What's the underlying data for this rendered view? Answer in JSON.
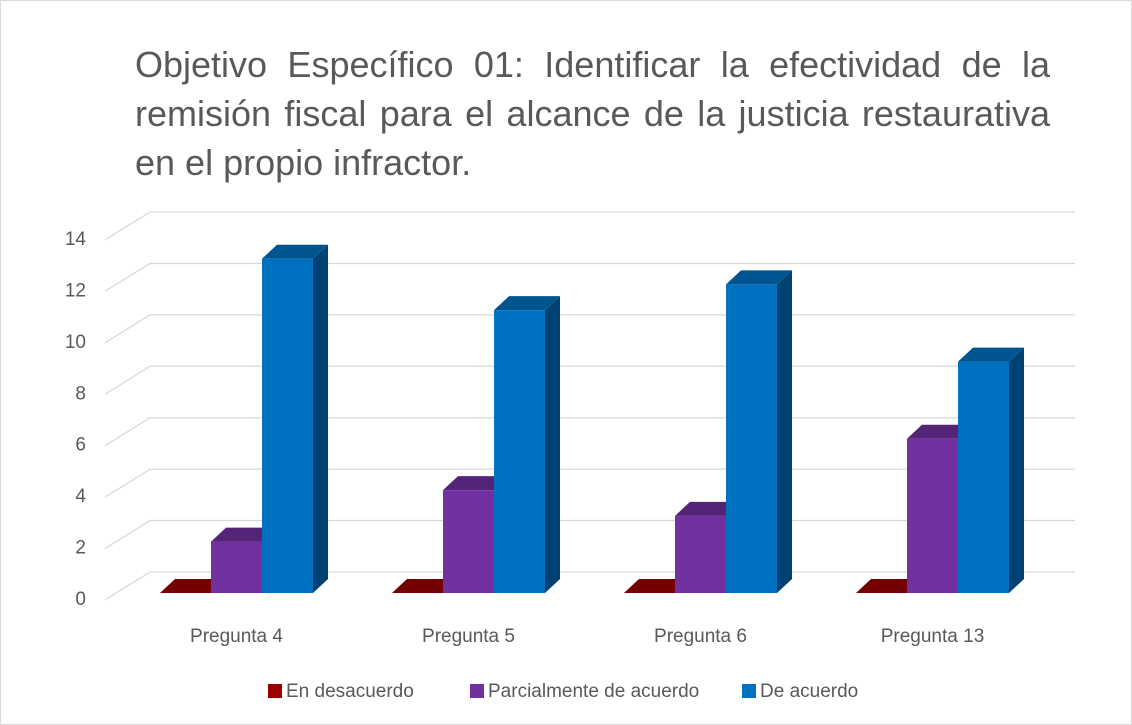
{
  "chart_data": {
    "type": "bar3d",
    "title": "Objetivo Específico 01: Identificar la efectividad de la remisión fiscal para el alcance de la justicia restaurativa en el propio infractor.",
    "categories": [
      "Pregunta 4",
      "Pregunta 5",
      "Pregunta 6",
      "Pregunta 13"
    ],
    "series": [
      {
        "name": "En desacuerdo",
        "color": "#9b0000",
        "values": [
          0,
          0,
          0,
          0
        ]
      },
      {
        "name": "Parcialmente de acuerdo",
        "color": "#7030a0",
        "values": [
          2,
          4,
          3,
          6
        ]
      },
      {
        "name": "De acuerdo",
        "color": "#0070c0",
        "values": [
          13,
          11,
          12,
          9
        ]
      }
    ],
    "ylim": [
      0,
      14
    ],
    "yticks": [
      0,
      2,
      4,
      6,
      8,
      10,
      12,
      14
    ],
    "grid": true,
    "legend": "bottom"
  }
}
